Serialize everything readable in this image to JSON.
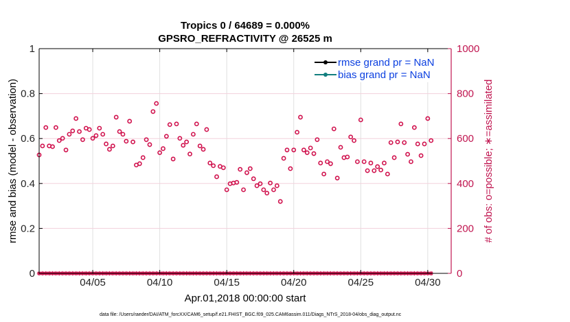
{
  "chart_data": {
    "type": "scatter",
    "title_lines": [
      "Tropics 0 / 64689 = 0.000%",
      "GPSRO_REFRACTIVITY @ 26525 m"
    ],
    "xlabel": "Apr.01,2018 00:00:00 start",
    "ylabel_left": "rmse and bias (model - observation)",
    "ylabel_right": "# of obs: o=possible; ∗=assimilated",
    "ylim_left": [
      0,
      1
    ],
    "ylim_right": [
      0,
      1000
    ],
    "left_ticks": [
      "0",
      "0.2",
      "0.4",
      "0.6",
      "0.8",
      "1"
    ],
    "left_tick_values": [
      0,
      0.2,
      0.4,
      0.6,
      0.8,
      1
    ],
    "right_ticks": [
      "0",
      "200",
      "400",
      "600",
      "800",
      "1000"
    ],
    "right_tick_values": [
      0,
      200,
      400,
      600,
      800,
      1000
    ],
    "x_range_days": [
      0,
      30.75
    ],
    "x_ticks": [
      "04/05",
      "04/10",
      "04/15",
      "04/20",
      "04/25",
      "04/30"
    ],
    "x_tick_days": [
      4,
      9,
      14,
      19,
      24,
      29
    ],
    "x_step_days": 0.25,
    "grid": true,
    "legend_position": "top-right",
    "legend": [
      {
        "label": "rmse grand pr = NaN",
        "color": "#000000"
      },
      {
        "label": "bias grand pr = NaN",
        "color": "#117e7e"
      }
    ],
    "colors": {
      "obs": "#d0104c",
      "axis_right": "#c0144f",
      "grid": "#e0e0e0",
      "grid_h": "#f3d0dc"
    },
    "series": [
      {
        "name": "possible obs (o)",
        "axis": "right",
        "marker": "circle",
        "values": [
          527,
          567,
          649,
          567,
          564,
          649,
          591,
          601,
          549,
          619,
          634,
          689,
          631,
          595,
          646,
          640,
          601,
          613,
          646,
          619,
          576,
          552,
          567,
          695,
          631,
          619,
          588,
          677,
          585,
          482,
          488,
          515,
          595,
          573,
          720,
          756,
          537,
          555,
          610,
          662,
          509,
          665,
          601,
          570,
          585,
          531,
          619,
          665,
          567,
          552,
          640,
          491,
          479,
          430,
          476,
          470,
          372,
          399,
          402,
          405,
          463,
          372,
          448,
          466,
          421,
          390,
          399,
          372,
          357,
          402,
          372,
          390,
          320,
          512,
          549,
          466,
          549,
          628,
          695,
          549,
          537,
          558,
          533,
          595,
          491,
          442,
          497,
          488,
          643,
          424,
          561,
          515,
          518,
          607,
          591,
          497,
          683,
          497,
          457,
          491,
          457,
          475,
          460,
          491,
          442,
          582,
          515,
          585,
          665,
          582,
          530,
          497,
          649,
          576,
          524,
          576,
          689,
          591
        ]
      },
      {
        "name": "assimilated obs (∗)",
        "axis": "right",
        "marker": "asterisk",
        "constant_value": 0
      }
    ]
  },
  "footer": {
    "data_file": "data file: /Users/raeder/DAI/ATM_forcXX/CAM6_setup/f.e21.FHIST_BGC.f09_025.CAM6assim.011/Diags_NTrS_2018-04/obs_diag_output.nc"
  }
}
